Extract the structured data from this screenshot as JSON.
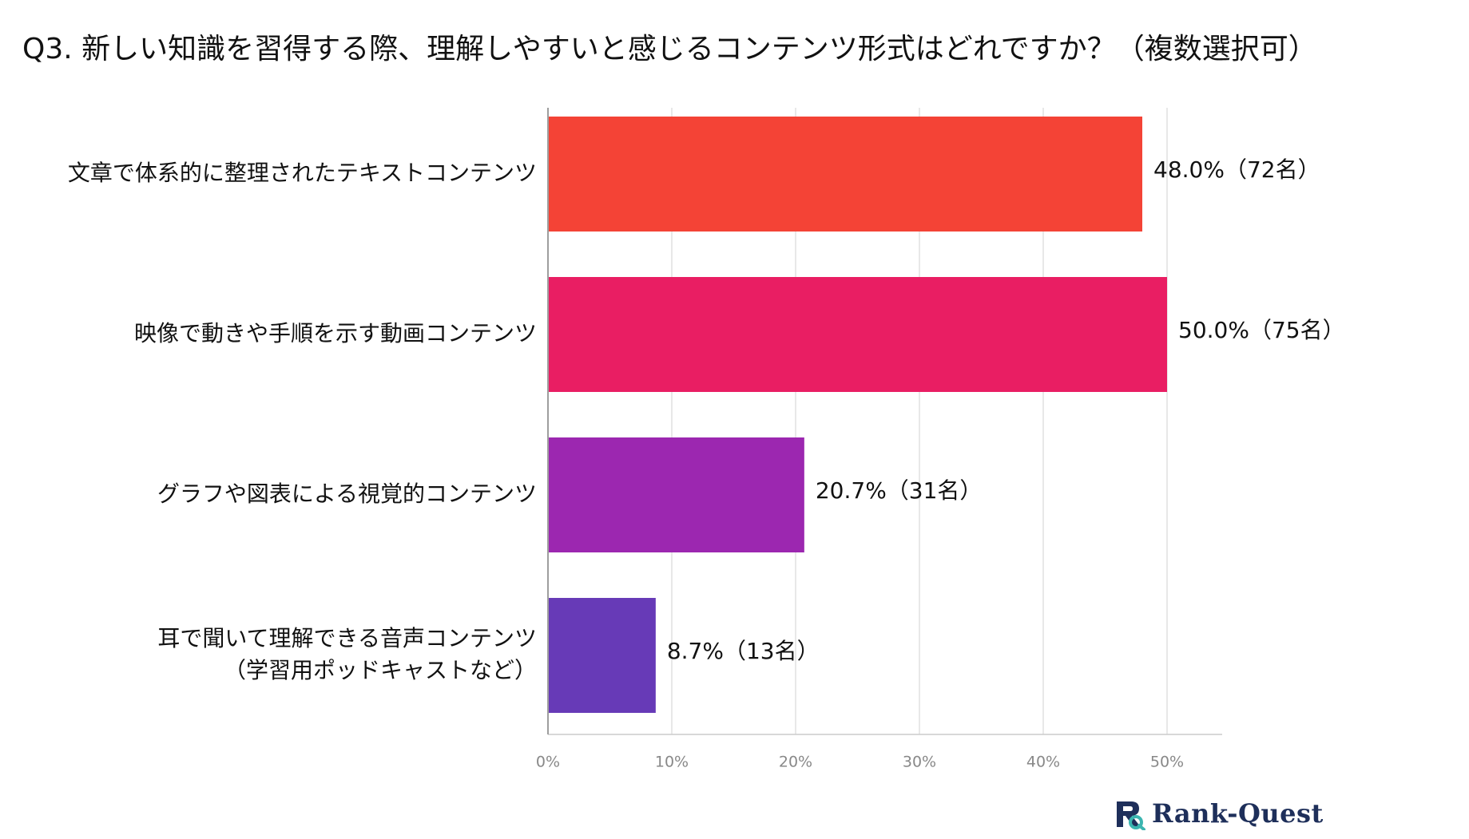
{
  "chart_data": {
    "type": "bar",
    "orientation": "horizontal",
    "title": "Q3. 新しい知識を習得する際、理解しやすいと感じるコンテンツ形式はどれですか？（複数選択可）",
    "categories": [
      [
        "文章で体系的に整理されたテキストコンテンツ"
      ],
      [
        "映像で動きや手順を示す動画コンテンツ"
      ],
      [
        "グラフや図表による視覚的コンテンツ"
      ],
      [
        "耳で聞いて理解できる音声コンテンツ",
        "（学習用ポッドキャストなど）"
      ]
    ],
    "values": [
      48.0,
      50.0,
      20.7,
      8.7
    ],
    "data_labels": [
      "48.0%（72名）",
      "50.0%（75名）",
      "20.7%（31名）",
      "8.7%（13名）"
    ],
    "colors": [
      "#f44336",
      "#e91e63",
      "#9c27b0",
      "#673ab7"
    ],
    "xlim": [
      0,
      55
    ],
    "x_ticks": [
      0,
      10,
      20,
      30,
      40,
      50
    ],
    "x_tick_labels": [
      "0%",
      "10%",
      "20%",
      "30%",
      "40%",
      "50%"
    ],
    "grid": true
  },
  "brand": {
    "name": "Rank-Quest",
    "icon": "rank-quest-logo-icon",
    "color": "#1e2f5a",
    "accent": "#3bb5b0"
  }
}
